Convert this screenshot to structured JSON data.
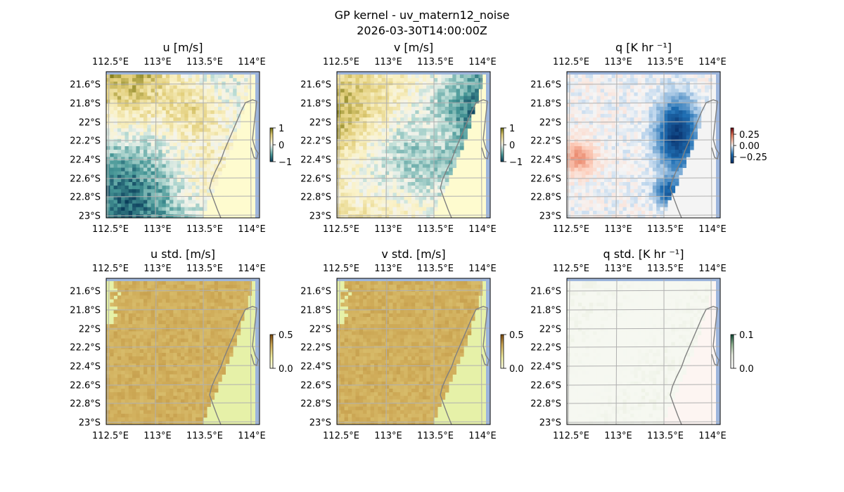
{
  "figure": {
    "suptitle_line1": "GP kernel - uv_matern12_noise",
    "suptitle_line2": "2026-03-30T14:00:00Z"
  },
  "chart_data": [
    {
      "type": "heatmap",
      "title": "u [m/s]",
      "x_ticks": [
        "112.5°E",
        "113°E",
        "113.5°E",
        "114°E"
      ],
      "y_ticks": [
        "21.6°S",
        "21.8°S",
        "22°S",
        "22.2°S",
        "22.4°S",
        "22.6°S",
        "22.8°S",
        "23°S"
      ],
      "colorbar": {
        "ticks": [
          "1",
          "0",
          "−1"
        ],
        "range": [
          -1,
          1
        ],
        "colormap": "diverging tan-white-teal"
      }
    },
    {
      "type": "heatmap",
      "title": "v [m/s]",
      "x_ticks": [
        "112.5°E",
        "113°E",
        "113.5°E",
        "114°E"
      ],
      "y_ticks": [
        "21.6°S",
        "21.8°S",
        "22°S",
        "22.2°S",
        "22.4°S",
        "22.6°S",
        "22.8°S",
        "23°S"
      ],
      "colorbar": {
        "ticks": [
          "1",
          "0",
          "−1"
        ],
        "range": [
          -1,
          1
        ],
        "colormap": "diverging tan-white-teal"
      }
    },
    {
      "type": "heatmap",
      "title": "q [K hr ⁻¹]",
      "x_ticks": [
        "112.5°E",
        "113°E",
        "113.5°E",
        "114°E"
      ],
      "y_ticks": [
        "21.6°S",
        "21.8°S",
        "22°S",
        "22.2°S",
        "22.4°S",
        "22.6°S",
        "22.8°S",
        "23°S"
      ],
      "colorbar": {
        "ticks": [
          "0.25",
          "0.00",
          "−0.25"
        ],
        "range": [
          -0.25,
          0.25
        ],
        "colormap": "diverging red-white-blue"
      }
    },
    {
      "type": "heatmap",
      "title": "u std. [m/s]",
      "x_ticks": [
        "112.5°E",
        "113°E",
        "113.5°E",
        "114°E"
      ],
      "y_ticks": [
        "21.6°S",
        "21.8°S",
        "22°S",
        "22.2°S",
        "22.4°S",
        "22.6°S",
        "22.8°S",
        "23°S"
      ],
      "colorbar": {
        "ticks": [
          "0.5",
          "0.0"
        ],
        "range": [
          0,
          0.5
        ],
        "colormap": "sequential yellow-brown"
      }
    },
    {
      "type": "heatmap",
      "title": "v std. [m/s]",
      "x_ticks": [
        "112.5°E",
        "113°E",
        "113.5°E",
        "114°E"
      ],
      "y_ticks": [
        "21.6°S",
        "21.8°S",
        "22°S",
        "22.2°S",
        "22.4°S",
        "22.6°S",
        "22.8°S",
        "23°S"
      ],
      "colorbar": {
        "ticks": [
          "0.5",
          "0.0"
        ],
        "range": [
          0,
          0.5
        ],
        "colormap": "sequential yellow-brown"
      }
    },
    {
      "type": "heatmap",
      "title": "q std. [K hr ⁻¹]",
      "x_ticks": [
        "112.5°E",
        "113°E",
        "113.5°E",
        "114°E"
      ],
      "y_ticks": [
        "21.6°S",
        "21.8°S",
        "22°S",
        "22.2°S",
        "22.4°S",
        "22.6°S",
        "22.8°S",
        "23°S"
      ],
      "colorbar": {
        "ticks": [
          "0.1",
          "0.0"
        ],
        "range": [
          0,
          0.1
        ],
        "colormap": "sequential white-green"
      }
    }
  ]
}
